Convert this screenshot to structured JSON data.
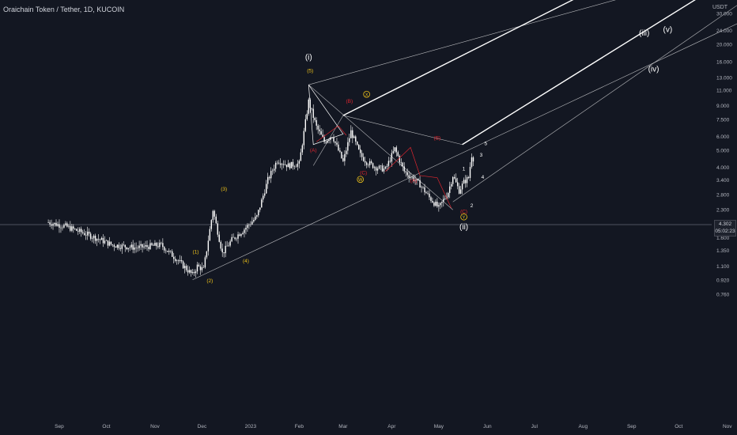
{
  "header": {
    "title": "Oraichain Token / Tether, 1D, KUCOIN",
    "unit": "USDT"
  },
  "price_tag": {
    "price": "4.302",
    "countdown": "05:02:23"
  },
  "colors": {
    "background": "#131722",
    "candle": "#ffffff",
    "channel": "#ffffff",
    "wave_yellow": "#f0c419",
    "wave_red": "#e0262f",
    "wave_white": "#ffffff"
  },
  "chart_data": {
    "type": "line",
    "scale": "log",
    "symbol": "Oraichain Token / Tether",
    "timeframe": "1D",
    "exchange": "KUCOIN",
    "ylim": [
      0.7,
      33
    ],
    "ytick_labels": [
      "30.000",
      "24.000",
      "20.000",
      "16.000",
      "13.000",
      "11.000",
      "9.000",
      "7.500",
      "6.000",
      "5.000",
      "4.000",
      "3.400",
      "2.800",
      "2.300",
      "1.900",
      "1.600",
      "1.350",
      "1.100",
      "0.920",
      "0.760"
    ],
    "xtick_labels": [
      "Sep",
      "Oct",
      "Nov",
      "Dec",
      "2023",
      "Feb",
      "Mar",
      "Apr",
      "May",
      "Jun",
      "Jul",
      "Aug",
      "Sep",
      "Oct",
      "Nov"
    ],
    "last_price": 4.302,
    "series": [
      {
        "x": [
          "2022-08-25",
          "2022-09-05",
          "2022-09-20",
          "2022-10-05",
          "2022-10-20",
          "2022-11-05",
          "2022-11-15",
          "2022-11-25",
          "2022-11-28",
          "2022-12-02",
          "2022-12-08",
          "2022-12-14",
          "2022-12-20",
          "2022-12-27",
          "2023-01-05",
          "2023-01-12",
          "2023-01-18",
          "2023-01-25",
          "2023-02-01",
          "2023-02-07",
          "2023-02-12",
          "2023-02-17",
          "2023-02-22",
          "2023-03-01",
          "2023-03-06",
          "2023-03-12",
          "2023-03-16",
          "2023-03-22",
          "2023-03-28",
          "2023-04-03",
          "2023-04-09",
          "2023-04-14",
          "2023-04-19",
          "2023-04-25",
          "2023-05-01",
          "2023-05-07",
          "2023-05-10",
          "2023-05-14",
          "2023-05-17",
          "2023-05-20",
          "2023-05-22",
          "2023-05-24"
        ],
        "values": [
          1.95,
          1.85,
          1.65,
          1.45,
          1.4,
          1.45,
          1.2,
          0.98,
          1.1,
          1.05,
          2.3,
          1.3,
          1.55,
          1.75,
          2.1,
          3.4,
          4.4,
          4.1,
          4.2,
          9.5,
          6.8,
          5.6,
          6.1,
          4.3,
          6.4,
          4.7,
          4.3,
          4.0,
          3.9,
          5.1,
          3.8,
          3.5,
          3.2,
          2.7,
          2.35,
          2.9,
          3.6,
          2.95,
          3.3,
          3.5,
          4.7,
          4.3
        ]
      }
    ],
    "wave_labels": {
      "yellow": [
        "(1)",
        "(2)",
        "(3)",
        "(4)",
        "(5)",
        "W",
        "X",
        "Y"
      ],
      "red": [
        "(A)",
        "(B)",
        "(C)",
        "(A)",
        "(B)",
        "(C)"
      ],
      "white": [
        "(i)",
        "(ii)",
        "(iii)",
        "(iv)",
        "(v)",
        "1",
        "2",
        "3",
        "4",
        "5"
      ]
    }
  }
}
